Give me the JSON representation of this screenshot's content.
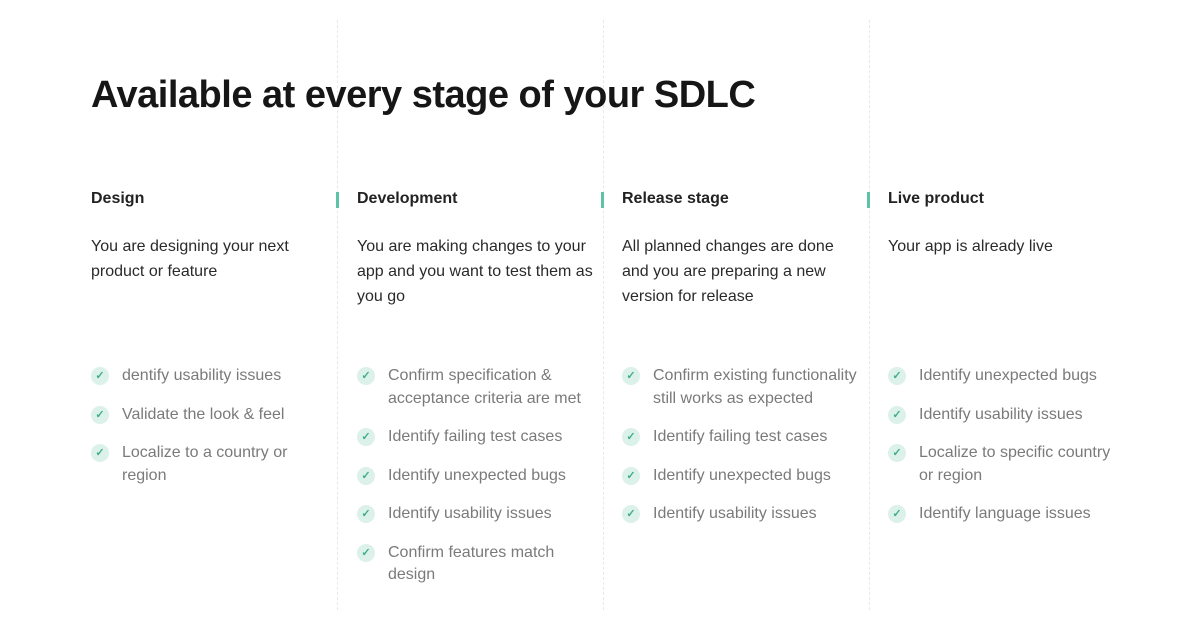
{
  "title": "Available at every stage of your SDLC",
  "accent_color": "#5cc3a7",
  "columns": [
    {
      "heading": "Design",
      "description": "You are designing your next product or feature",
      "items": [
        "dentify usability issues",
        "Validate the look & feel",
        "Localize to a country or region"
      ]
    },
    {
      "heading": "Development",
      "description": "You are making changes to your app and you want to test them as you go",
      "items": [
        "Confirm specification & acceptance criteria are met",
        "Identify failing test cases",
        "Identify unexpected bugs",
        "Identify usability issues",
        "Confirm features match design"
      ]
    },
    {
      "heading": "Release stage",
      "description": "All planned changes are done and you are preparing a new version for release",
      "items": [
        "Confirm existing functionality still works as expected",
        "Identify failing test cases",
        "Identify unexpected bugs",
        "Identify usability issues"
      ]
    },
    {
      "heading": "Live product",
      "description": "Your app is already live",
      "items": [
        "Identify unexpected bugs",
        "Identify usability issues",
        "Localize to specific country or region",
        "Identify language issues"
      ]
    }
  ]
}
